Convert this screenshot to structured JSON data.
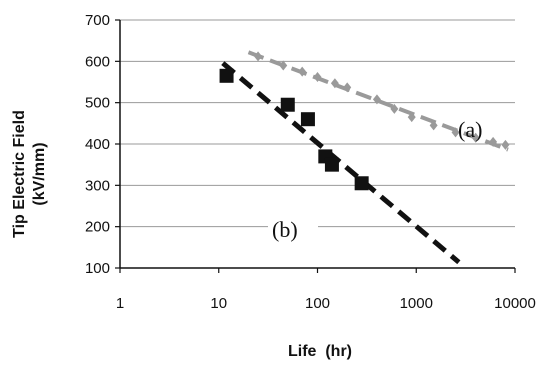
{
  "chart_data": {
    "type": "scatter",
    "title": "",
    "xlabel": "Life  (hr)",
    "ylabel": "Tip Electric Field",
    "ylabel_unit": "(kV/mm)",
    "x_scale": "log",
    "xlim": [
      1,
      10000
    ],
    "ylim": [
      100,
      700
    ],
    "x_ticks": [
      1,
      10,
      100,
      1000,
      10000
    ],
    "x_tick_labels": [
      "1",
      "10",
      "100",
      "1000",
      "10000"
    ],
    "y_ticks": [
      100,
      200,
      300,
      400,
      500,
      600,
      700
    ],
    "y_tick_labels": [
      "100",
      "200",
      "300",
      "400",
      "500",
      "600",
      "700"
    ],
    "grid": "horizontal",
    "series": [
      {
        "name": "(a)",
        "color": "#9a9a9a",
        "marker": "small-diamond",
        "points": [
          [
            25,
            612
          ],
          [
            45,
            590
          ],
          [
            70,
            575
          ],
          [
            100,
            562
          ],
          [
            150,
            547
          ],
          [
            200,
            537
          ],
          [
            400,
            508
          ],
          [
            600,
            485
          ],
          [
            900,
            465
          ],
          [
            1500,
            445
          ],
          [
            2500,
            428
          ],
          [
            4000,
            415
          ],
          [
            6000,
            405
          ],
          [
            8000,
            398
          ]
        ],
        "trend_x": [
          20,
          8500
        ]
      },
      {
        "name": "(b)",
        "color": "#111111",
        "marker": "square",
        "points": [
          [
            12,
            565
          ],
          [
            50,
            495
          ],
          [
            80,
            460
          ],
          [
            120,
            370
          ],
          [
            140,
            350
          ],
          [
            280,
            305
          ]
        ],
        "trend_x": [
          11,
          2700
        ]
      }
    ]
  }
}
